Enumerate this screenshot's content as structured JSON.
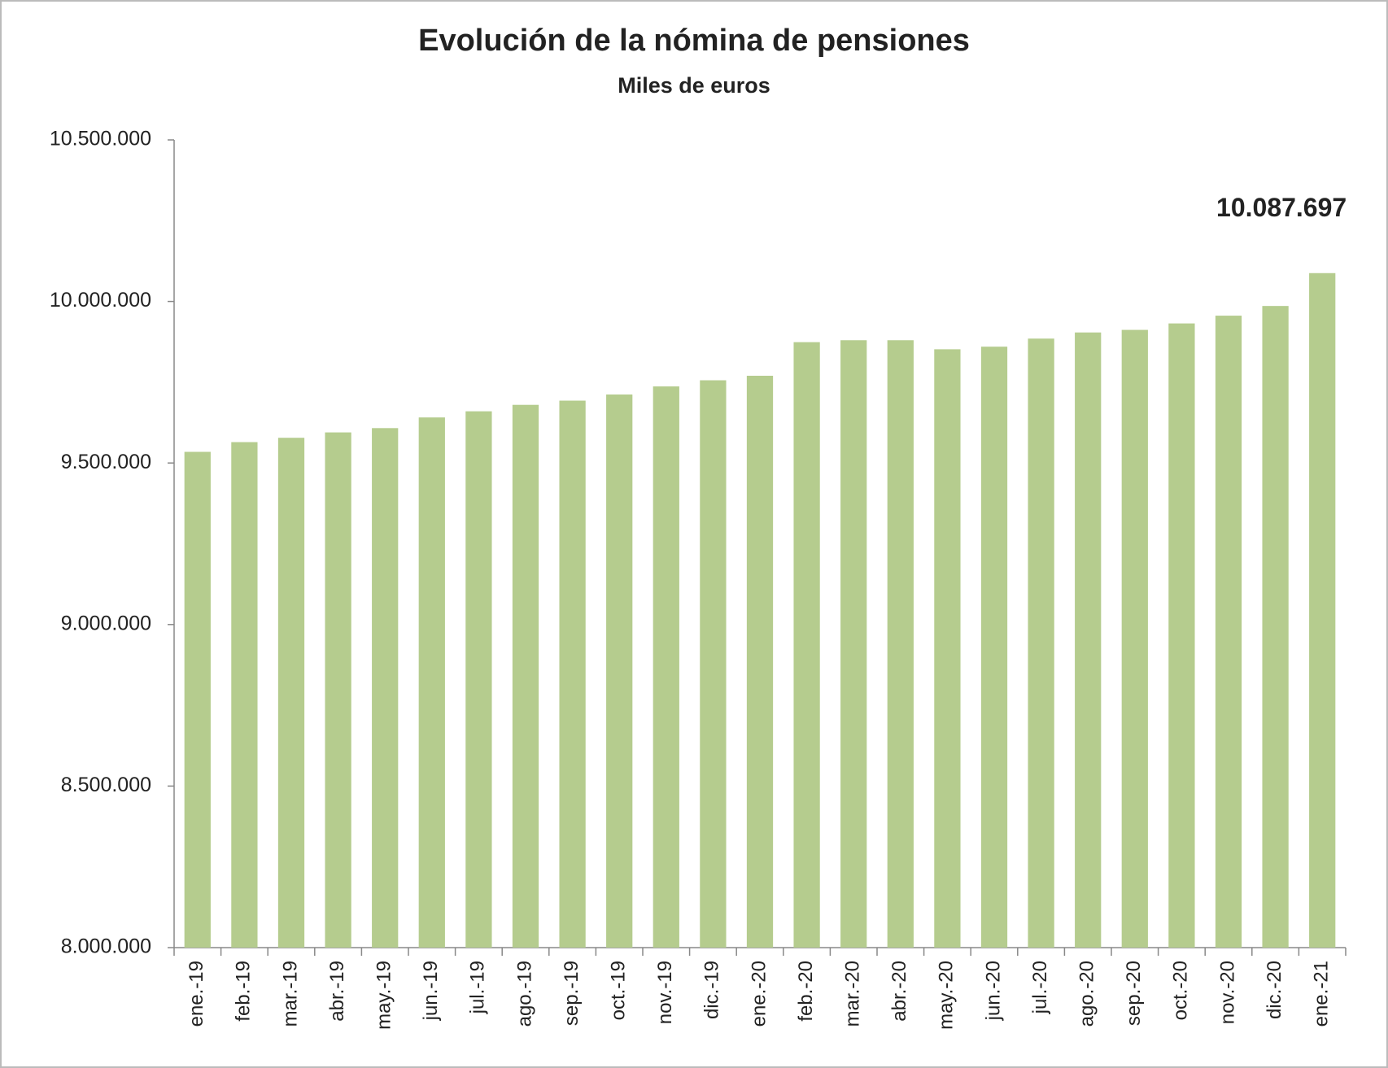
{
  "chart_data": {
    "type": "bar",
    "title": "Evolución de la nómina de pensiones",
    "subtitle": "Miles de euros",
    "categories": [
      "ene.-19",
      "feb.-19",
      "mar.-19",
      "abr.-19",
      "may.-19",
      "jun.-19",
      "jul.-19",
      "ago.-19",
      "sep.-19",
      "oct.-19",
      "nov.-19",
      "dic.-19",
      "ene.-20",
      "feb.-20",
      "mar.-20",
      "abr.-20",
      "may.-20",
      "jun.-20",
      "jul.-20",
      "ago.-20",
      "sep.-20",
      "oct.-20",
      "nov.-20",
      "dic.-20",
      "ene.-21"
    ],
    "values": [
      9534500,
      9564600,
      9578000,
      9594700,
      9608000,
      9641000,
      9660000,
      9680000,
      9693000,
      9712000,
      9737000,
      9756000,
      9770000,
      9874000,
      9880000,
      9880000,
      9852000,
      9860000,
      9885000,
      9904000,
      9912000,
      9932000,
      9956000,
      9986000,
      10087697
    ],
    "value_labels": [
      null,
      null,
      null,
      null,
      null,
      null,
      null,
      null,
      null,
      null,
      null,
      null,
      null,
      null,
      null,
      null,
      null,
      null,
      null,
      null,
      null,
      null,
      null,
      null,
      "10.087.697"
    ],
    "color": "#b5cc8e",
    "ylim": [
      8000000,
      10500000
    ],
    "yticks": [
      {
        "value": 8000000,
        "label": "8.000.000"
      },
      {
        "value": 8500000,
        "label": "8.500.000"
      },
      {
        "value": 9000000,
        "label": "9.000.000"
      },
      {
        "value": 9500000,
        "label": "9.500.000"
      },
      {
        "value": 10000000,
        "label": "10.000.000"
      },
      {
        "value": 10500000,
        "label": "10.500.000"
      }
    ],
    "grid": false
  }
}
